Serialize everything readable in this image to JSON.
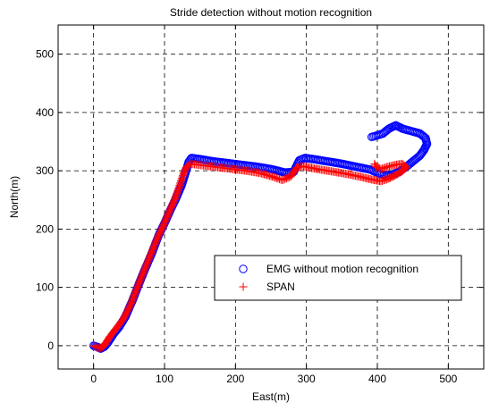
{
  "chart_data": {
    "type": "scatter",
    "title": "Stride detection without motion recognition",
    "xlabel": "East(m)",
    "ylabel": "North(m)",
    "xlim": [
      -50,
      550
    ],
    "ylim": [
      -40,
      550
    ],
    "xticks": [
      0,
      100,
      200,
      300,
      400,
      500
    ],
    "yticks": [
      0,
      100,
      200,
      300,
      400,
      500
    ],
    "grid": true,
    "legend_position": "lower-right",
    "series": [
      {
        "name": "EMG without motion recognition",
        "marker": "circle",
        "color": "#0000ff",
        "points": [
          [
            0,
            0
          ],
          [
            5,
            -2
          ],
          [
            10,
            -5
          ],
          [
            15,
            -2
          ],
          [
            20,
            5
          ],
          [
            28,
            20
          ],
          [
            36,
            32
          ],
          [
            45,
            50
          ],
          [
            55,
            78
          ],
          [
            62,
            100
          ],
          [
            72,
            130
          ],
          [
            82,
            158
          ],
          [
            92,
            190
          ],
          [
            100,
            210
          ],
          [
            108,
            232
          ],
          [
            116,
            252
          ],
          [
            124,
            275
          ],
          [
            130,
            298
          ],
          [
            134,
            315
          ],
          [
            138,
            322
          ],
          [
            150,
            320
          ],
          [
            170,
            316
          ],
          [
            190,
            313
          ],
          [
            210,
            310
          ],
          [
            230,
            307
          ],
          [
            250,
            303
          ],
          [
            270,
            297
          ],
          [
            282,
            298
          ],
          [
            290,
            318
          ],
          [
            298,
            322
          ],
          [
            310,
            320
          ],
          [
            330,
            316
          ],
          [
            350,
            312
          ],
          [
            370,
            307
          ],
          [
            390,
            302
          ],
          [
            405,
            294
          ],
          [
            418,
            292
          ],
          [
            430,
            298
          ],
          [
            440,
            306
          ],
          [
            450,
            316
          ],
          [
            460,
            326
          ],
          [
            466,
            336
          ],
          [
            470,
            346
          ],
          [
            468,
            356
          ],
          [
            460,
            364
          ],
          [
            448,
            368
          ],
          [
            436,
            372
          ],
          [
            426,
            378
          ],
          [
            416,
            372
          ],
          [
            408,
            364
          ],
          [
            398,
            360
          ],
          [
            392,
            358
          ]
        ]
      },
      {
        "name": "SPAN",
        "marker": "plus",
        "color": "#ff0000",
        "points": [
          [
            0,
            0
          ],
          [
            4,
            -3
          ],
          [
            8,
            -4
          ],
          [
            12,
            -3
          ],
          [
            16,
            2
          ],
          [
            22,
            14
          ],
          [
            32,
            30
          ],
          [
            42,
            46
          ],
          [
            52,
            70
          ],
          [
            60,
            95
          ],
          [
            70,
            125
          ],
          [
            80,
            155
          ],
          [
            90,
            185
          ],
          [
            98,
            205
          ],
          [
            106,
            228
          ],
          [
            114,
            250
          ],
          [
            120,
            270
          ],
          [
            126,
            292
          ],
          [
            130,
            305
          ],
          [
            136,
            312
          ],
          [
            155,
            309
          ],
          [
            175,
            306
          ],
          [
            195,
            303
          ],
          [
            215,
            300
          ],
          [
            235,
            296
          ],
          [
            252,
            290
          ],
          [
            266,
            284
          ],
          [
            278,
            290
          ],
          [
            286,
            305
          ],
          [
            294,
            308
          ],
          [
            315,
            303
          ],
          [
            335,
            299
          ],
          [
            355,
            295
          ],
          [
            375,
            290
          ],
          [
            392,
            285
          ],
          [
            405,
            282
          ],
          [
            415,
            286
          ],
          [
            425,
            292
          ],
          [
            435,
            299
          ],
          [
            441,
            306
          ],
          [
            435,
            312
          ],
          [
            425,
            310
          ],
          [
            415,
            307
          ],
          [
            405,
            303
          ],
          [
            398,
            307
          ],
          [
            396,
            312
          ]
        ]
      }
    ]
  }
}
